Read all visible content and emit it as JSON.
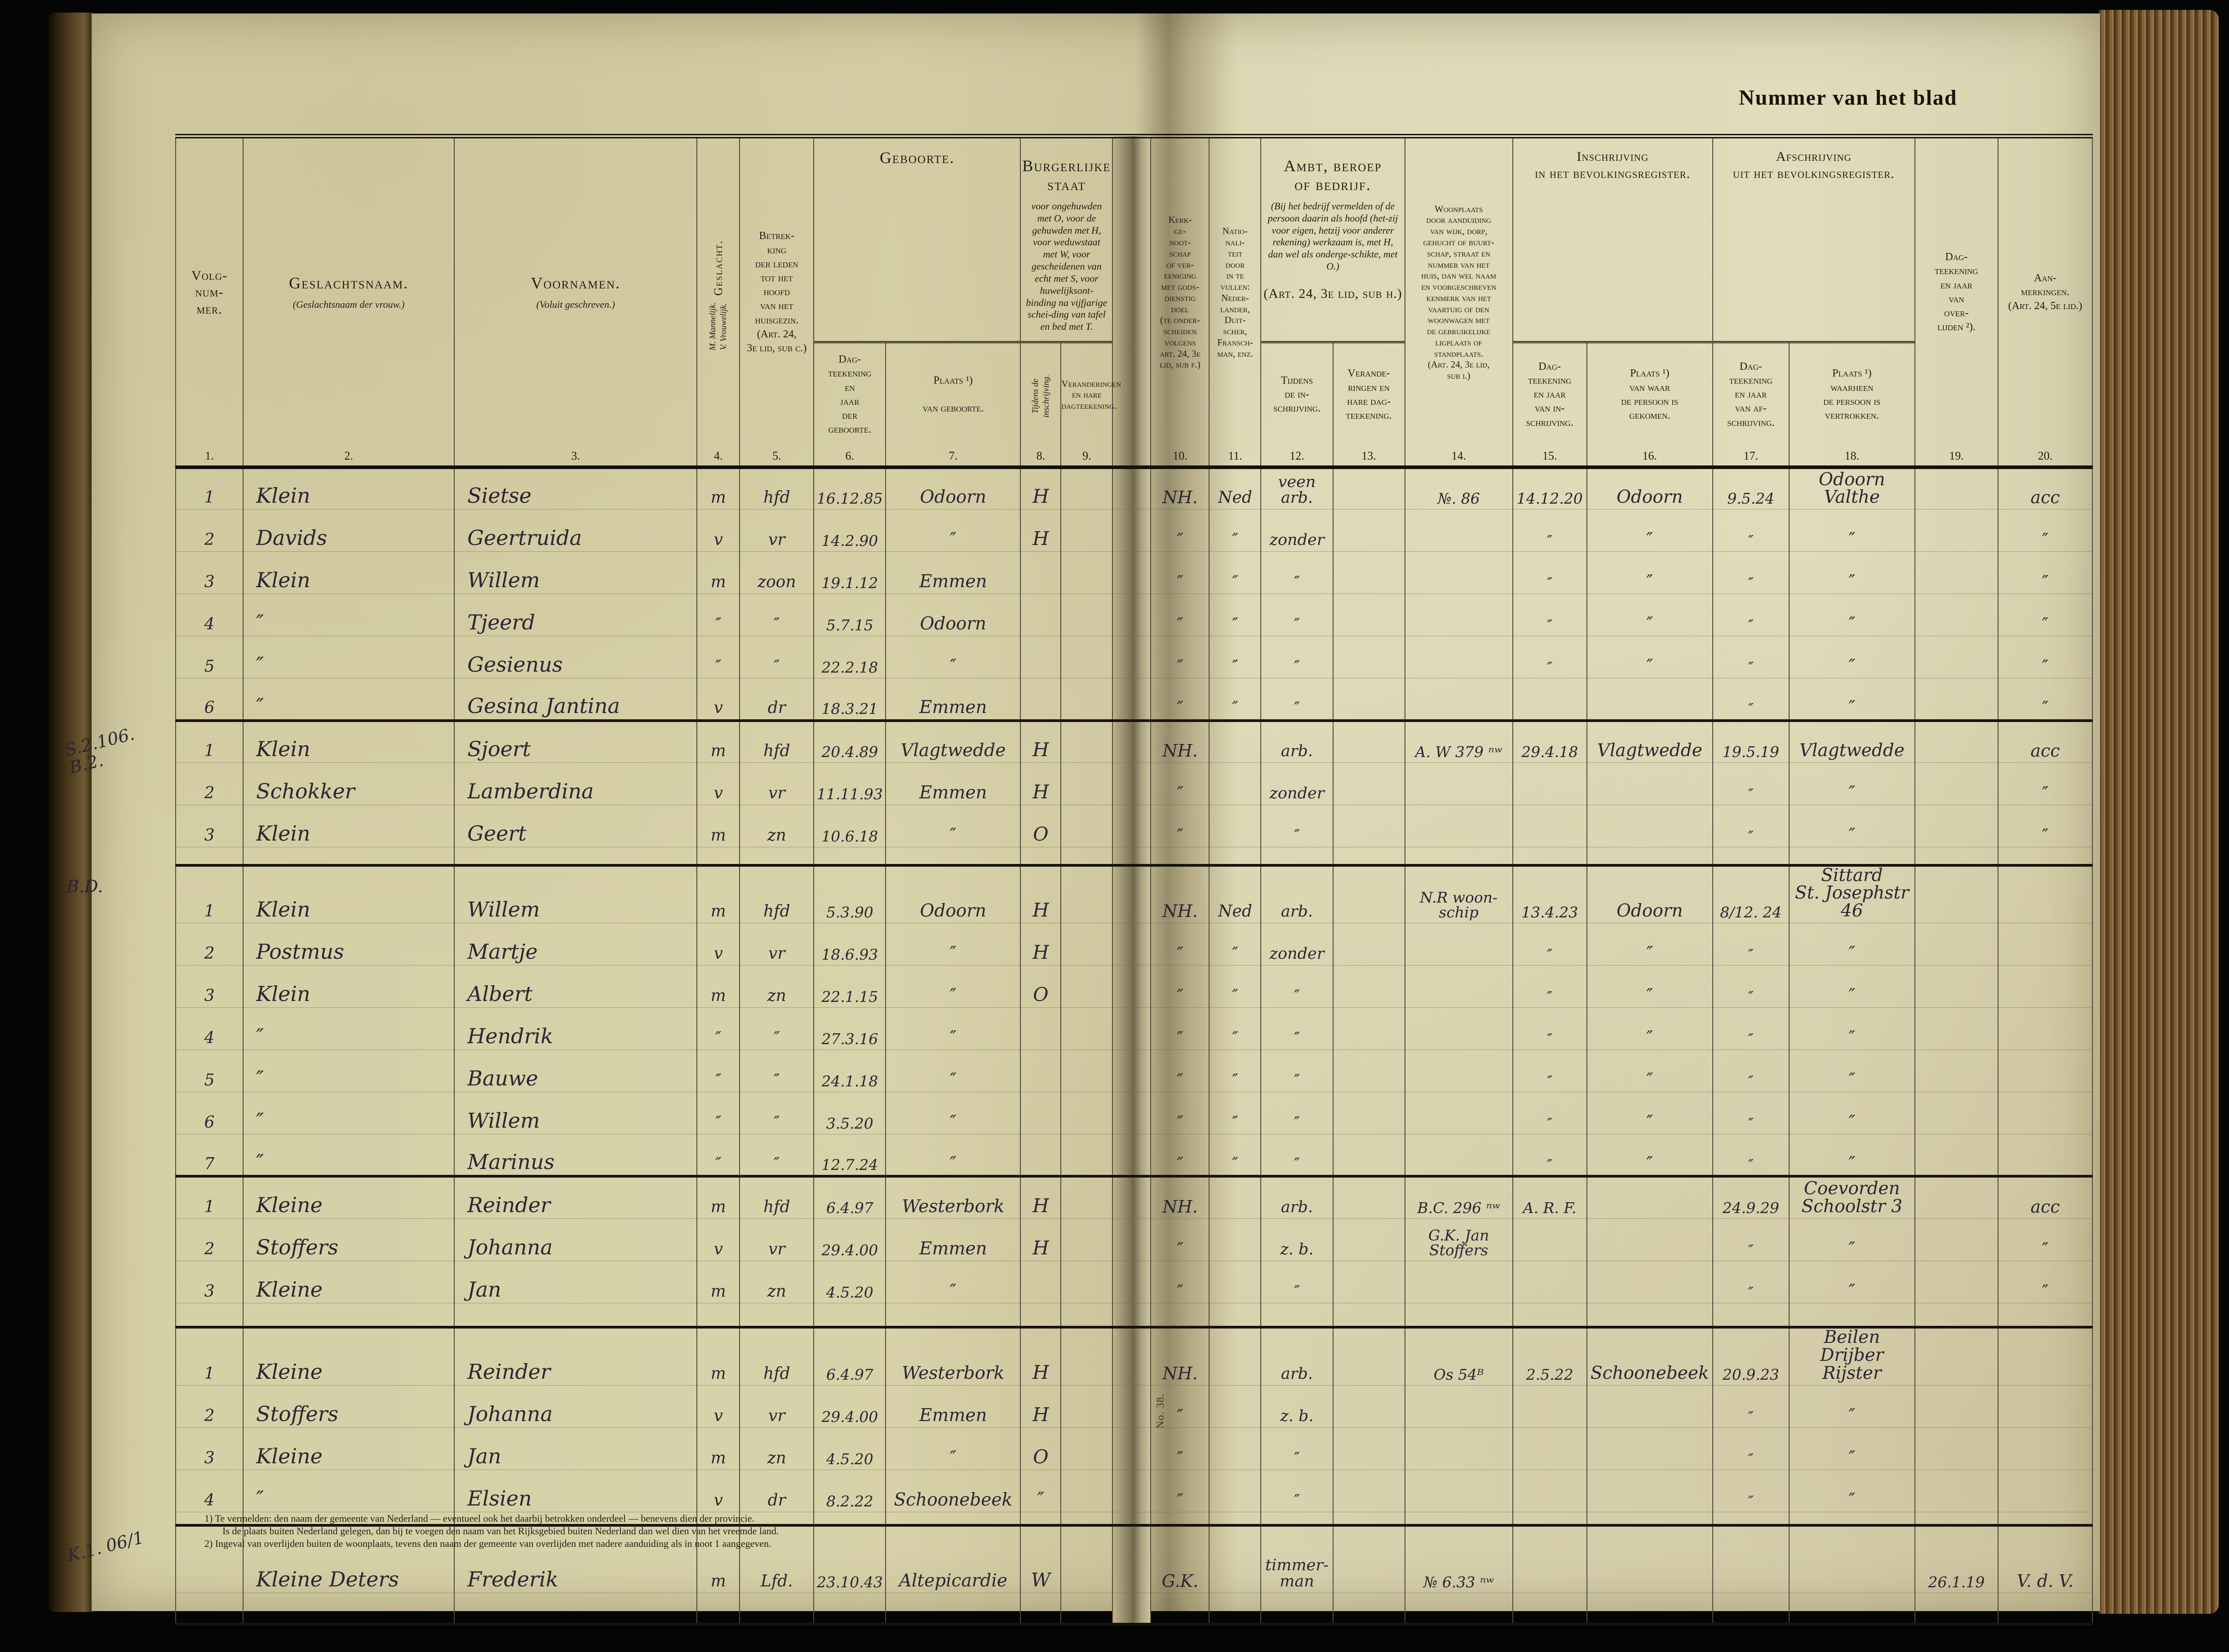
{
  "page": {
    "corner_title": "Nummer van het blad",
    "gutter_label": "No. 38."
  },
  "columns_order": [
    "nr",
    "geslachtsnaam",
    "voornamen",
    "geslacht",
    "betrekking",
    "geboorte_datum",
    "geboorte_plaats",
    "burg_staat",
    "burg_staat_verand",
    "kerkgenootschap",
    "nationaliteit",
    "beroep",
    "beroep_verand",
    "woonplaats",
    "inschrijving_datum",
    "inschrijving_plaats",
    "afschrijving_datum",
    "afschrijving_plaats",
    "overlijden",
    "aanmerkingen"
  ],
  "header": {
    "c1": "Volg-\nnum-\nmer.",
    "c2_title": "Geslachtsnaam.",
    "c2_sub": "(Geslachtsnaam der vrouw.)",
    "c3_title": "Voornamen.",
    "c3_sub": "(Voluit geschreven.)",
    "c4_title": "Geslacht.",
    "c4_sub": "M. Mannelijk.\nV. Vrouwelijk.",
    "c5": "Betrek-\nking\nder leden\ntot het\nhoofd\nvan het\nhuisgezin.\n(Art. 24,\n3e lid, sub c.)",
    "g_geboorte": "Geboorte.",
    "c6": "Dag-\nteekening\nen\njaar\nder\ngeboorte.",
    "c7": "Plaats ¹)\n\nvan geboorte.",
    "g_bs_title": "Burgerlijke\nstaat",
    "g_bs_note": "voor ongehuwden met O, voor de gehuwden met H, voor weduwstaat met W, voor gescheidenen van echt met S, voor huwelijksont-binding na vijfjarige schei-ding van tafel en bed met T.",
    "c8": "Tijdens de\ninschrijving.",
    "c9": "Veranderingen\nen hare\ndagteekening.",
    "c10": "Kerk-\nge-\nnoot-\nschap\nof ver-\neeniging\nmet gods-\ndienstig\ndoel\n(te onder-\nscheiden\nvolgens\nart. 24, 3e\nlid, sub f.)",
    "c11": "Natio-\nnali-\nteit\ndoor\nin te\nvullen:\nNeder-\nlander,\nDuit-\nscher,\nFransch-\nman, enz.",
    "g_ambt_title": "Ambt, beroep\nof bedrijf.",
    "g_ambt_note": "(Bij het bedrijf vermelden of de persoon daarin als hoofd (het-zij voor eigen, hetzij voor anderer rekening) werkzaam is, met H, dan wel als onderge-schikte, met O.)",
    "g_ambt_art": "(Art. 24, 3e lid, sub h.)",
    "c12": "Tijdens\nde in-\nschrijving.",
    "c13": "Verande-\nringen en\nhare dag-\nteekening.",
    "c14": "Woonplaats\ndoor aanduiding\nvan wijk, dorp,\ngehucht of buurt-\nschap, straat en\nnummer van het\nhuis, dan wel naam\nen voorgeschreven\nkenmerk van het\nvaartuig of den\nwoonwagen met\nde gebruikelijke\nligplaats of\nstandplaats.\n(Art. 24, 3e lid,\nsub i.)",
    "g_in": "Inschrijving\nin het bevolkingsregister.",
    "c15": "Dag-\nteekening\nen jaar\nvan in-\nschrijving.",
    "c16": "Plaats ¹)\nvan waar\nde persoon is\ngekomen.",
    "g_af": "Afschrijving\nuit het bevolkingsregister.",
    "c17": "Dag-\nteekening\nen jaar\nvan af-\nschrijving.",
    "c18": "Plaats ¹)\nwaarheen\nde persoon is\nvertrokken.",
    "c19": "Dag-\nteekening\nen jaar\nvan\nover-\nlijden ²).",
    "c20": "Aan-\nmerkingen.\n(Art. 24, 5e lid.)",
    "nums": [
      "1.",
      "2.",
      "3.",
      "4.",
      "5.",
      "6.",
      "7.",
      "8.",
      "9.",
      "10.",
      "11.",
      "12.",
      "13.",
      "14.",
      "15.",
      "16.",
      "17.",
      "18.",
      "19.",
      "20."
    ]
  },
  "blocks": [
    {
      "margin": "",
      "rows": [
        [
          "1",
          "Klein",
          "Sietse",
          "m",
          "hfd",
          "16.12.85",
          "Odoorn",
          "H",
          "",
          "NH.",
          "Ned",
          "veen\narb.",
          "",
          "№. 86",
          "14.12.20",
          "Odoorn",
          "9.5.24",
          "Odoorn  Valthe",
          "",
          "acc"
        ],
        [
          "2",
          "Davids",
          "Geertruida",
          "v",
          "vr",
          "14.2.90",
          "″",
          "H",
          "",
          "″",
          "″",
          "zonder",
          "",
          "",
          "″",
          "″",
          "″",
          "″",
          "",
          "″"
        ],
        [
          "3",
          "Klein",
          "Willem",
          "m",
          "zoon",
          "19.1.12",
          "Emmen",
          "",
          "",
          "″",
          "″",
          "″",
          "",
          "",
          "″",
          "″",
          "″",
          "″",
          "",
          "″"
        ],
        [
          "4",
          "″",
          "Tjeerd",
          "″",
          "″",
          "5.7.15",
          "Odoorn",
          "",
          "",
          "″",
          "″",
          "″",
          "",
          "",
          "″",
          "″",
          "″",
          "″",
          "",
          "″"
        ],
        [
          "5",
          "″",
          "Gesienus",
          "″",
          "″",
          "22.2.18",
          "″",
          "",
          "",
          "″",
          "″",
          "″",
          "",
          "",
          "″",
          "″",
          "″",
          "″",
          "",
          "″"
        ],
        [
          "6",
          "″",
          "Gesina Jantina",
          "v",
          "dr",
          "18.3.21",
          "Emmen",
          "",
          "",
          "″",
          "″",
          "″",
          "",
          "",
          "",
          "",
          "″",
          "″",
          "",
          "″"
        ]
      ],
      "gap": 0
    },
    {
      "margin": "S.2.106.\nB.2.",
      "tilt": true,
      "rows": [
        [
          "1",
          "Klein",
          "Sjoert",
          "m",
          "hfd",
          "20.4.89",
          "Vlagtwedde",
          "H",
          "",
          "NH.",
          "",
          "arb.",
          "",
          "A. W 379 ⁿʷ",
          "29.4.18",
          "Vlagtwedde",
          "19.5.19",
          "Vlagtwedde",
          "",
          "acc"
        ],
        [
          "2",
          "Schokker",
          "Lamberdina",
          "v",
          "vr",
          "11.11.93",
          "Emmen",
          "H",
          "",
          "″",
          "",
          "zonder",
          "",
          "",
          "",
          "",
          "″",
          "″",
          "",
          "″"
        ],
        [
          "3",
          "Klein",
          "Geert",
          "m",
          "zn",
          "10.6.18",
          "″",
          "O",
          "",
          "″",
          "",
          "″",
          "",
          "",
          "",
          "",
          "″",
          "″",
          "",
          "″"
        ]
      ],
      "gap": 40
    },
    {
      "margin": "B.D.",
      "tilt": false,
      "rows": [
        [
          "1",
          "Klein",
          "Willem",
          "m",
          "hfd",
          "5.3.90",
          "Odoorn",
          "H",
          "",
          "NH.",
          "Ned",
          "arb.",
          "",
          "N.R woon-\nschip",
          "13.4.23",
          "Odoorn",
          "8/12. 24",
          "Sittard\nSt. Josephstr 46",
          "",
          ""
        ],
        [
          "2",
          "Postmus",
          "Martje",
          "v",
          "vr",
          "18.6.93",
          "″",
          "H",
          "",
          "″",
          "″",
          "zonder",
          "",
          "",
          "″",
          "″",
          "″",
          "″",
          "",
          ""
        ],
        [
          "3",
          "Klein",
          "Albert",
          "m",
          "zn",
          "22.1.15",
          "″",
          "O",
          "",
          "″",
          "″",
          "″",
          "",
          "",
          "″",
          "″",
          "″",
          "″",
          "",
          ""
        ],
        [
          "4",
          "″",
          "Hendrik",
          "″",
          "″",
          "27.3.16",
          "″",
          "",
          "",
          "″",
          "″",
          "″",
          "",
          "",
          "″",
          "″",
          "″",
          "″",
          "",
          ""
        ],
        [
          "5",
          "″",
          "Bauwe",
          "″",
          "″",
          "24.1.18",
          "″",
          "",
          "",
          "″",
          "″",
          "″",
          "",
          "",
          "″",
          "″",
          "″",
          "″",
          "",
          ""
        ],
        [
          "6",
          "″",
          "Willem",
          "″",
          "″",
          "3.5.20",
          "″",
          "",
          "",
          "″",
          "″",
          "″",
          "",
          "",
          "″",
          "″",
          "″",
          "″",
          "",
          ""
        ],
        [
          "7",
          "″",
          "Marinus",
          "″",
          "″",
          "12.7.24",
          "″",
          "",
          "",
          "″",
          "″",
          "″",
          "",
          "",
          "″",
          "″",
          "″",
          "″",
          "",
          ""
        ]
      ],
      "gap": 0
    },
    {
      "margin": "",
      "rows": [
        [
          "1",
          "Kleine",
          "Reinder",
          "m",
          "hfd",
          "6.4.97",
          "Westerbork",
          "H",
          "",
          "NH.",
          "",
          "arb.",
          "",
          "B.C. 296 ⁿʷ",
          "A. R. F.",
          "",
          "24.9.29",
          "Coevorden\nSchoolstr 3",
          "",
          "acc"
        ],
        [
          "2",
          "Stoffers",
          "Johanna",
          "v",
          "vr",
          "29.4.00",
          "Emmen",
          "H",
          "",
          "″",
          "",
          "z. b.",
          "",
          "G.K. Jan Stoffers",
          "",
          "",
          "″",
          "″",
          "",
          "″"
        ],
        [
          "3",
          "Kleine",
          "Jan",
          "m",
          "zn",
          "4.5.20",
          "″",
          "",
          "",
          "″",
          "",
          "″",
          "",
          "",
          "",
          "",
          "″",
          "″",
          "",
          "″"
        ]
      ],
      "gap": 54
    },
    {
      "margin": "",
      "rows": [
        [
          "1",
          "Kleine",
          "Reinder",
          "m",
          "hfd",
          "6.4.97",
          "Westerbork",
          "H",
          "",
          "NH.",
          "",
          "arb.",
          "",
          "Os 54ᴮ",
          "2.5.22",
          "Schoonebeek",
          "20.9.23",
          "Beilen\nDrijber Rijster",
          "",
          ""
        ],
        [
          "2",
          "Stoffers",
          "Johanna",
          "v",
          "vr",
          "29.4.00",
          "Emmen",
          "H",
          "",
          "″",
          "",
          "z. b.",
          "",
          "",
          "",
          "",
          "″",
          "″",
          "",
          ""
        ],
        [
          "3",
          "Kleine",
          "Jan",
          "m",
          "zn",
          "4.5.20",
          "″",
          "O",
          "",
          "″",
          "",
          "″",
          "",
          "",
          "",
          "",
          "″",
          "″",
          "",
          ""
        ],
        [
          "4",
          "″",
          "Elsien",
          "v",
          "dr",
          "8.2.22",
          "Schoonebeek",
          "″",
          "",
          "″",
          "",
          "″",
          "",
          "",
          "",
          "",
          "″",
          "″",
          "",
          ""
        ]
      ],
      "gap": 30
    },
    {
      "margin": "K.1. 06/1",
      "tilt": true,
      "tall": true,
      "rows": [
        [
          "",
          "Kleine Deters",
          "Frederik",
          "m",
          "Lfd.",
          "23.10.43",
          "Altepicardie",
          "W",
          "",
          "G.K.",
          "",
          "timmer-\nman",
          "",
          "№ 6.33 ⁿʷ",
          "",
          "",
          "",
          "",
          "26.1.19",
          "V. d. V."
        ]
      ],
      "gap": 70
    }
  ],
  "footnotes": [
    "1)  Te vermelden: den naam der gemeente van Nederland — eventueel ook het daarbij betrokken onderdeel — benevens dien der provincie.",
    "Is de plaats buiten Nederland gelegen, dan bij te voegen den naam van het Rijksgebied buiten Nederland dan wel dien van het vreemde land.",
    "2)  Ingeval van overlijden buiten de woonplaats, tevens den naam der gemeente van overlijden met nadere aanduiding als in noot 1 aangegeven."
  ]
}
